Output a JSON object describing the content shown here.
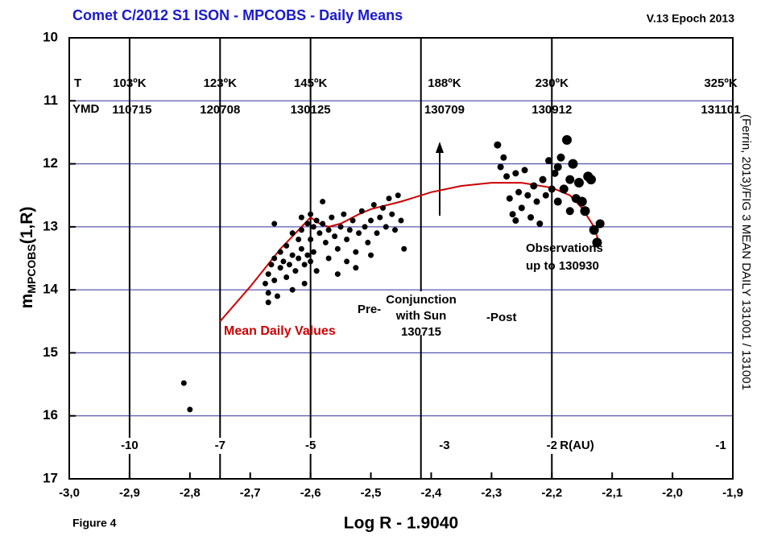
{
  "chart_data": {
    "type": "scatter",
    "title": "Comet C/2012 S1 ISON - MPCOBS - Daily Means",
    "version": "V.13 Epoch 2013",
    "figure_label": "Figure 4",
    "xlabel": "Log R - 1.9040",
    "ylabel": "m",
    "ylabel_sub": "MPCOBS",
    "ylabel_suffix": "(1,R)",
    "side_note": "(Ferrin, 2013)/FIG 3 MEAN DAILY 131001 / 131001",
    "xlim": [
      -3.0,
      -1.9
    ],
    "ylim": [
      10,
      17
    ],
    "y_inverted": true,
    "xticks": [
      {
        "value": -3.0,
        "label": "-3,0"
      },
      {
        "value": -2.9,
        "label": "-2,9"
      },
      {
        "value": -2.8,
        "label": "-2,8"
      },
      {
        "value": -2.7,
        "label": "-2,7"
      },
      {
        "value": -2.6,
        "label": "-2,6"
      },
      {
        "value": -2.5,
        "label": "-2,5"
      },
      {
        "value": -2.4,
        "label": "-2,4"
      },
      {
        "value": -2.3,
        "label": "-2,3"
      },
      {
        "value": -2.2,
        "label": "-2,2"
      },
      {
        "value": -2.1,
        "label": "-2,1"
      },
      {
        "value": -2.0,
        "label": "-2,0"
      },
      {
        "value": -1.9,
        "label": "-1,9"
      }
    ],
    "yticks": [
      10,
      11,
      12,
      13,
      14,
      15,
      16,
      17
    ],
    "grid": true,
    "grid_color": "#3030a0",
    "point_color": "#000000",
    "title_color": "#1a1acc",
    "row_labels": [
      "T",
      "YMD"
    ],
    "r_unit": "R(AU)",
    "markers": [
      {
        "x": -2.9,
        "temp": "103ºK",
        "date": "110715",
        "r": "-10",
        "line": true
      },
      {
        "x": -2.75,
        "temp": "123ºK",
        "date": "120708",
        "r": "-7",
        "line": true
      },
      {
        "x": -2.6,
        "temp": "145ºK",
        "date": "130125",
        "r": "-5",
        "line": true
      },
      {
        "x": -2.378,
        "temp": "188ºK",
        "date": "130709",
        "r": "-3",
        "line": false
      },
      {
        "x": -2.2,
        "temp": "230ºK",
        "date": "130912",
        "r": "-2",
        "line": true
      },
      {
        "x": -1.92,
        "temp": "325ºK",
        "date": "131101",
        "r": "-1",
        "line": false
      }
    ],
    "conjunction_x": -2.417,
    "conjunction_text": [
      "Conjunction",
      "with Sun",
      "130715"
    ],
    "pre_label": "Pre-",
    "post_label": "-Post",
    "obs_text": [
      "Observations",
      "up to 130930"
    ],
    "curve": {
      "name": "Mean Daily Values",
      "color": "#cc0000",
      "x": [
        -2.75,
        -2.7,
        -2.65,
        -2.62,
        -2.6,
        -2.585,
        -2.57,
        -2.55,
        -2.52,
        -2.5,
        -2.45,
        -2.4,
        -2.35,
        -2.3,
        -2.25,
        -2.2,
        -2.17,
        -2.15,
        -2.13,
        -2.12
      ],
      "y": [
        14.5,
        13.95,
        13.35,
        13.05,
        12.85,
        12.95,
        13.0,
        12.95,
        12.8,
        12.72,
        12.6,
        12.45,
        12.35,
        12.3,
        12.3,
        12.38,
        12.5,
        12.7,
        13.0,
        13.3
      ]
    },
    "points": {
      "x": [
        -2.67,
        -2.67,
        -2.675,
        -2.67,
        -2.665,
        -2.66,
        -2.66,
        -2.655,
        -2.65,
        -2.65,
        -2.645,
        -2.64,
        -2.64,
        -2.635,
        -2.63,
        -2.63,
        -2.625,
        -2.62,
        -2.62,
        -2.615,
        -2.61,
        -2.61,
        -2.605,
        -2.6,
        -2.6,
        -2.595,
        -2.59,
        -2.66,
        -2.63,
        -2.615,
        -2.6,
        -2.595,
        -2.59,
        -2.585,
        -2.58,
        -2.575,
        -2.57,
        -2.565,
        -2.56,
        -2.555,
        -2.55,
        -2.545,
        -2.54,
        -2.535,
        -2.53,
        -2.525,
        -2.52,
        -2.515,
        -2.51,
        -2.505,
        -2.5,
        -2.495,
        -2.49,
        -2.485,
        -2.48,
        -2.475,
        -2.47,
        -2.465,
        -2.46,
        -2.455,
        -2.45,
        -2.445,
        -2.58,
        -2.555,
        -2.525,
        -2.57,
        -2.54,
        -2.5,
        -2.615,
        -2.605,
        -2.29,
        -2.285,
        -2.28,
        -2.275,
        -2.27,
        -2.265,
        -2.26,
        -2.255,
        -2.25,
        -2.245,
        -2.24,
        -2.235,
        -2.23,
        -2.225,
        -2.22,
        -2.215,
        -2.21,
        -2.205,
        -2.2,
        -2.195,
        -2.19,
        -2.185,
        -2.18,
        -2.175,
        -2.17,
        -2.165,
        -2.16,
        -2.155,
        -2.15,
        -2.145,
        -2.14,
        -2.135,
        -2.13,
        -2.125,
        -2.12,
        -2.26,
        -2.19,
        -2.17,
        -2.81,
        -2.8
      ],
      "y": [
        14.2,
        14.05,
        13.9,
        13.75,
        13.6,
        13.5,
        13.85,
        14.1,
        13.65,
        13.4,
        13.55,
        13.8,
        13.3,
        13.6,
        13.45,
        14.0,
        13.7,
        13.2,
        13.5,
        13.35,
        13.6,
        13.9,
        13.45,
        13.2,
        13.55,
        13.4,
        13.7,
        12.95,
        13.1,
        12.85,
        12.8,
        13.0,
        12.9,
        13.1,
        12.95,
        13.25,
        13.05,
        12.85,
        13.15,
        13.35,
        13.0,
        12.8,
        13.2,
        13.05,
        12.9,
        13.4,
        13.1,
        12.75,
        13.0,
        13.25,
        12.9,
        12.65,
        13.1,
        12.85,
        12.7,
        13.0,
        12.55,
        12.8,
        13.05,
        12.5,
        12.9,
        13.35,
        12.6,
        13.75,
        13.65,
        13.5,
        13.55,
        13.45,
        13.05,
        12.95,
        11.7,
        12.05,
        11.9,
        12.2,
        12.55,
        12.8,
        12.9,
        12.45,
        12.7,
        12.1,
        12.5,
        12.85,
        12.35,
        12.6,
        12.95,
        12.25,
        12.5,
        11.95,
        12.4,
        12.15,
        12.6,
        11.9,
        12.4,
        11.62,
        12.25,
        12.0,
        12.55,
        12.3,
        12.6,
        12.75,
        12.2,
        12.25,
        13.05,
        13.25,
        12.95,
        12.15,
        12.05,
        12.75,
        15.48,
        15.9
      ],
      "size": [
        3.5,
        3.5,
        3.5,
        3.5,
        3.5,
        3.5,
        3.5,
        3.5,
        3.5,
        3.5,
        3.5,
        3.5,
        3.5,
        3.5,
        3.5,
        3.5,
        3.5,
        3.5,
        3.5,
        3.5,
        3.5,
        3.5,
        3.5,
        3.5,
        3.5,
        3.5,
        3.5,
        3.5,
        3.5,
        3.5,
        3.5,
        3.5,
        3.5,
        3.5,
        3.5,
        3.5,
        3.5,
        3.5,
        3.5,
        3.5,
        3.5,
        3.5,
        3.5,
        3.5,
        3.5,
        3.5,
        3.5,
        3.5,
        3.5,
        3.5,
        3.5,
        3.5,
        3.5,
        3.5,
        3.5,
        3.5,
        3.5,
        3.5,
        3.5,
        3.5,
        3.5,
        3.5,
        3.5,
        3.5,
        3.5,
        3.5,
        3.5,
        3.5,
        3.5,
        3.5,
        4.5,
        4,
        4,
        4,
        4,
        4,
        4,
        4,
        4,
        4,
        4,
        4,
        4.5,
        4,
        4,
        4.5,
        4,
        4.5,
        4.5,
        4.5,
        5,
        5,
        5.5,
        6,
        5.5,
        6,
        5.5,
        6,
        6,
        6,
        6,
        6,
        6,
        6,
        5.5,
        4,
        5,
        5,
        3.5,
        3.5
      ]
    }
  }
}
